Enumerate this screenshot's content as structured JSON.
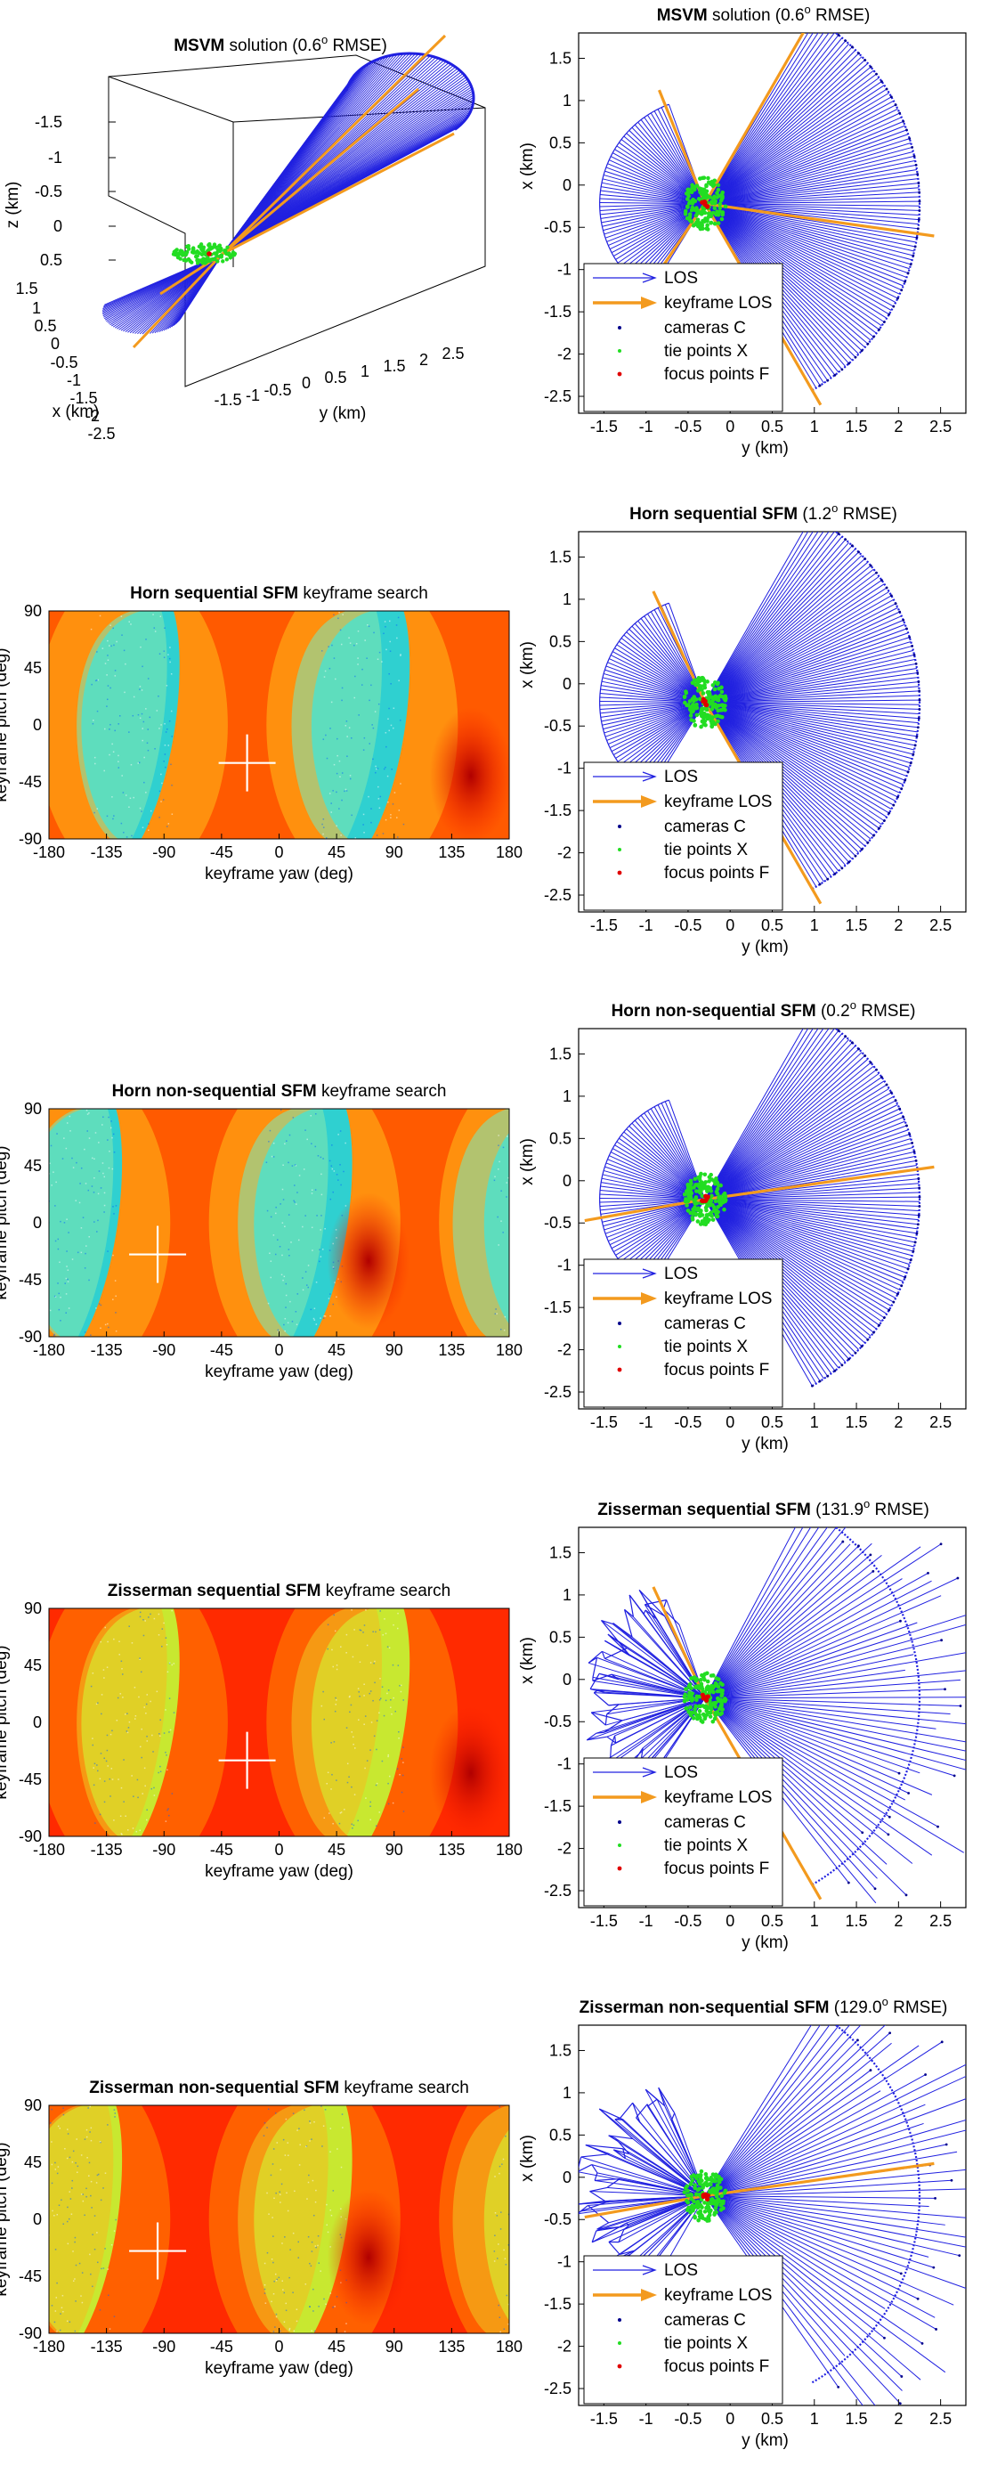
{
  "chart_data": [
    {
      "type": "line",
      "view": "3d",
      "title_bold": "MSVM",
      "title_rest": "solution (0.6",
      "title_sup": "o",
      "title_tail": "RMSE)",
      "xlabel": "x  (km)",
      "ylabel": "y  (km)",
      "zlabel": "z  (km)",
      "xticks": [
        "1.5",
        "1",
        "0.5",
        "0",
        "-0.5",
        "-1",
        "-1.5",
        "-2",
        "-2.5"
      ],
      "yticks": [
        "-1.5",
        "-1",
        "-0.5",
        "0",
        "0.5",
        "1",
        "1.5",
        "2",
        "2.5"
      ],
      "zticks": [
        "-1.5",
        "-1",
        "-0.5",
        "0",
        "0.5"
      ],
      "colors": {
        "los": "#2020e0",
        "keyframe": "#f39a1e",
        "cameras": "#00008b",
        "tie": "#22dd22",
        "focus": "#e00000"
      }
    },
    {
      "type": "line",
      "title_bold": "MSVM",
      "title_rest": "solution (0.6",
      "title_sup": "o",
      "title_tail": "RMSE)",
      "xlabel": "y  (km)",
      "ylabel": "x  (km)",
      "xlim": [
        -1.8,
        2.8
      ],
      "ylim": [
        -2.7,
        1.8
      ],
      "xticks": [
        "-1.5",
        "-1",
        "-0.5",
        "0",
        "0.5",
        "1",
        "1.5",
        "2",
        "2.5"
      ],
      "yticks": [
        "1.5",
        "1",
        "0.5",
        "0",
        "-0.5",
        "-1",
        "-1.5",
        "-2",
        "-2.5"
      ],
      "legend": [
        "LOS",
        "keyframe LOS",
        "cameras C",
        "tie points X",
        "focus points F"
      ],
      "legend_position": "bottom-left",
      "focus": [
        -0.3,
        -0.22
      ],
      "near_arc": {
        "from_deg": 110,
        "to_deg": 238,
        "radius": 1.25,
        "rays": 70
      },
      "far_arc": {
        "from_deg": -60,
        "to_deg": 60,
        "radius": 2.55,
        "rays": 110
      },
      "keyframe_los_deg": [
        -60,
        60,
        112,
        236,
        -8
      ],
      "rmse_deg": 0.6
    },
    {
      "type": "heatmap",
      "title_bold": "Horn sequential SFM",
      "title_rest": "keyframe search",
      "xlabel": "keyframe yaw (deg)",
      "ylabel": "keyframe pitch (deg)",
      "xlim": [
        -180,
        180
      ],
      "ylim": [
        -90,
        90
      ],
      "xticks": [
        "-180",
        "-135",
        "-90",
        "-45",
        "0",
        "45",
        "90",
        "135",
        "180"
      ],
      "yticks": [
        "90",
        "45",
        "0",
        "-45",
        "-90"
      ],
      "marker_yaw": -25,
      "marker_pitch": -30,
      "minimum_yaw": 150,
      "minimum_pitch": -40,
      "colormap": "jet-like: red (low) to cyan (high)"
    },
    {
      "type": "line",
      "title_bold": "Horn sequential SFM",
      "title_rest": "(1.2",
      "title_sup": "o",
      "title_tail": "RMSE)",
      "xlabel": "y  (km)",
      "ylabel": "x  (km)",
      "xlim": [
        -1.8,
        2.8
      ],
      "ylim": [
        -2.7,
        1.8
      ],
      "xticks": [
        "-1.5",
        "-1",
        "-0.5",
        "0",
        "0.5",
        "1",
        "1.5",
        "2",
        "2.5"
      ],
      "yticks": [
        "1.5",
        "1",
        "0.5",
        "0",
        "-0.5",
        "-1",
        "-1.5",
        "-2",
        "-2.5"
      ],
      "legend": [
        "LOS",
        "keyframe LOS",
        "cameras C",
        "tie points X",
        "focus points F"
      ],
      "legend_position": "bottom-left",
      "keyframe_los_deg": [
        -60,
        115
      ],
      "rmse_deg": 1.2
    },
    {
      "type": "heatmap",
      "title_bold": "Horn non-sequential SFM",
      "title_rest": "keyframe search",
      "xlabel": "keyframe yaw (deg)",
      "ylabel": "keyframe pitch (deg)",
      "xlim": [
        -180,
        180
      ],
      "ylim": [
        -90,
        90
      ],
      "xticks": [
        "-180",
        "-135",
        "-90",
        "-45",
        "0",
        "45",
        "90",
        "135",
        "180"
      ],
      "yticks": [
        "90",
        "45",
        "0",
        "-45",
        "-90"
      ],
      "marker_yaw": -95,
      "marker_pitch": -25,
      "minimum_yaw": 70,
      "minimum_pitch": -30,
      "colormap": "jet-like: red (low) to cyan (high)"
    },
    {
      "type": "line",
      "title_bold": "Horn non-sequential SFM",
      "title_rest": "(0.2",
      "title_sup": "o",
      "title_tail": "RMSE)",
      "xlabel": "y  (km)",
      "ylabel": "x  (km)",
      "xlim": [
        -1.8,
        2.8
      ],
      "ylim": [
        -2.7,
        1.8
      ],
      "xticks": [
        "-1.5",
        "-1",
        "-0.5",
        "0",
        "0.5",
        "1",
        "1.5",
        "2",
        "2.5"
      ],
      "yticks": [
        "1.5",
        "1",
        "0.5",
        "0",
        "-0.5",
        "-1",
        "-1.5",
        "-2",
        "-2.5"
      ],
      "legend": [
        "LOS",
        "keyframe LOS",
        "cameras C",
        "tie points X",
        "focus points F"
      ],
      "legend_position": "bottom-left",
      "keyframe_los_deg": [
        8,
        190
      ],
      "rmse_deg": 0.2
    },
    {
      "type": "heatmap",
      "title_bold": "Zisserman sequential SFM",
      "title_rest": "keyframe search",
      "xlabel": "keyframe yaw (deg)",
      "ylabel": "keyframe pitch (deg)",
      "xlim": [
        -180,
        180
      ],
      "ylim": [
        -90,
        90
      ],
      "xticks": [
        "-180",
        "-135",
        "-90",
        "-45",
        "0",
        "45",
        "90",
        "135",
        "180"
      ],
      "yticks": [
        "90",
        "45",
        "0",
        "-45",
        "-90"
      ],
      "marker_yaw": -25,
      "marker_pitch": -30,
      "minimum_yaw": 150,
      "minimum_pitch": -40,
      "colormap": "jet-like: red (low) to cyan (high)"
    },
    {
      "type": "line",
      "title_bold": "Zisserman sequential SFM",
      "title_rest": "(131.9",
      "title_sup": "o",
      "title_tail": "RMSE)",
      "xlabel": "y  (km)",
      "ylabel": "x  (km)",
      "xlim": [
        -1.8,
        2.8
      ],
      "ylim": [
        -2.7,
        1.8
      ],
      "xticks": [
        "-1.5",
        "-1",
        "-0.5",
        "0",
        "0.5",
        "1",
        "1.5",
        "2",
        "2.5"
      ],
      "yticks": [
        "1.5",
        "1",
        "0.5",
        "0",
        "-0.5",
        "-1",
        "-1.5",
        "-2",
        "-2.5"
      ],
      "legend": [
        "LOS",
        "keyframe LOS",
        "cameras C",
        "tie points X",
        "focus points F"
      ],
      "legend_position": "bottom-left",
      "keyframe_los_deg": [
        -60,
        115
      ],
      "rmse_deg": 131.9
    },
    {
      "type": "heatmap",
      "title_bold": "Zisserman non-sequential SFM",
      "title_rest": "keyframe search",
      "xlabel": "keyframe yaw (deg)",
      "ylabel": "keyframe pitch (deg)",
      "xlim": [
        -180,
        180
      ],
      "ylim": [
        -90,
        90
      ],
      "xticks": [
        "-180",
        "-135",
        "-90",
        "-45",
        "0",
        "45",
        "90",
        "135",
        "180"
      ],
      "yticks": [
        "90",
        "45",
        "0",
        "-45",
        "-90"
      ],
      "marker_yaw": -95,
      "marker_pitch": -25,
      "minimum_yaw": 70,
      "minimum_pitch": -30,
      "colormap": "jet-like: red (low) to cyan (high)"
    },
    {
      "type": "line",
      "title_bold": "Zisserman non-sequential SFM",
      "title_rest": "(129.0",
      "title_sup": "o",
      "title_tail": "RMSE)",
      "xlabel": "y  (km)",
      "ylabel": "x  (km)",
      "xlim": [
        -1.8,
        2.8
      ],
      "ylim": [
        -2.7,
        1.8
      ],
      "xticks": [
        "-1.5",
        "-1",
        "-0.5",
        "0",
        "0.5",
        "1",
        "1.5",
        "2",
        "2.5"
      ],
      "yticks": [
        "1.5",
        "1",
        "0.5",
        "0",
        "-0.5",
        "-1",
        "-1.5",
        "-2",
        "-2.5"
      ],
      "legend": [
        "LOS",
        "keyframe LOS",
        "cameras C",
        "tie points X",
        "focus points F"
      ],
      "legend_position": "bottom-left",
      "keyframe_los_deg": [
        8,
        190
      ],
      "rmse_deg": 129.0
    }
  ]
}
